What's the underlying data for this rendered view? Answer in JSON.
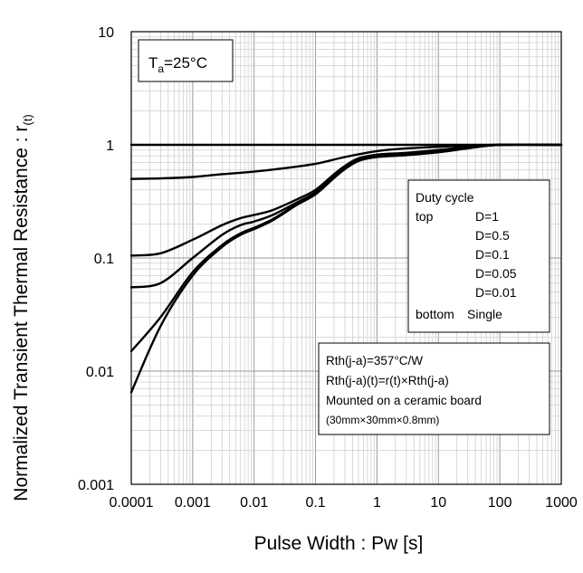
{
  "chart_data": {
    "type": "line",
    "title": "",
    "xlabel": "Pulse Width : Pw [s]",
    "ylabel_main": "Normalized Transient Thermal Resistance : r",
    "ylabel_sub": "(t)",
    "xscale": "log",
    "yscale": "log",
    "xlim": [
      0.0001,
      1000
    ],
    "ylim": [
      0.001,
      10
    ],
    "grid": true,
    "xticks": [
      "0.0001",
      "0.001",
      "0.01",
      "0.1",
      "1",
      "10",
      "100",
      "1000"
    ],
    "yticks": [
      "0.001",
      "0.01",
      "0.1",
      "1",
      "10"
    ],
    "condition_main": "T",
    "condition_sub": "a",
    "condition_value": "=25°C",
    "legend": {
      "title": "Duty cycle",
      "prefix_top": "top",
      "prefix_bottom": "bottom",
      "entries": [
        "D=1",
        "D=0.5",
        "D=0.1",
        "D=0.05",
        "D=0.01",
        "Single"
      ],
      "placement": "right"
    },
    "annotation": [
      "Rth(j-a)=357°C/W",
      "Rth(j-a)(t)=r(t)×Rth(j-a)",
      "Mounted on a ceramic board",
      "(30mm×30mm×0.8mm)"
    ],
    "series": [
      {
        "name": "D=1",
        "x": [
          0.0001,
          1000
        ],
        "y": [
          1,
          1
        ]
      },
      {
        "name": "D=0.5",
        "x": [
          0.0001,
          0.0003,
          0.001,
          0.003,
          0.01,
          0.03,
          0.1,
          0.3,
          1,
          3,
          10,
          30,
          100,
          1000
        ],
        "y": [
          0.5,
          0.505,
          0.52,
          0.55,
          0.58,
          0.62,
          0.68,
          0.78,
          0.88,
          0.93,
          0.96,
          0.985,
          1,
          1
        ]
      },
      {
        "name": "D=0.1",
        "x": [
          0.0001,
          0.0003,
          0.001,
          0.003,
          0.006,
          0.01,
          0.02,
          0.05,
          0.1,
          0.2,
          0.3,
          0.5,
          1,
          3,
          10,
          30,
          100,
          1000
        ],
        "y": [
          0.105,
          0.11,
          0.145,
          0.195,
          0.225,
          0.24,
          0.265,
          0.33,
          0.4,
          0.55,
          0.65,
          0.76,
          0.82,
          0.85,
          0.9,
          0.96,
          1,
          1
        ]
      },
      {
        "name": "D=0.05",
        "x": [
          0.0001,
          0.0003,
          0.001,
          0.003,
          0.006,
          0.01,
          0.02,
          0.05,
          0.1,
          0.2,
          0.3,
          0.5,
          1,
          3,
          10,
          30,
          100,
          1000
        ],
        "y": [
          0.055,
          0.06,
          0.1,
          0.16,
          0.195,
          0.21,
          0.24,
          0.31,
          0.38,
          0.53,
          0.63,
          0.74,
          0.8,
          0.83,
          0.88,
          0.95,
          1,
          1
        ]
      },
      {
        "name": "D=0.01",
        "x": [
          0.0001,
          0.0003,
          0.001,
          0.003,
          0.006,
          0.01,
          0.02,
          0.05,
          0.1,
          0.2,
          0.3,
          0.5,
          1,
          3,
          10,
          30,
          100,
          1000
        ],
        "y": [
          0.015,
          0.03,
          0.075,
          0.13,
          0.165,
          0.185,
          0.22,
          0.3,
          0.37,
          0.52,
          0.62,
          0.73,
          0.79,
          0.82,
          0.87,
          0.94,
          1,
          1
        ]
      },
      {
        "name": "Single",
        "x": [
          0.0001,
          0.0003,
          0.001,
          0.003,
          0.006,
          0.01,
          0.02,
          0.05,
          0.1,
          0.2,
          0.3,
          0.5,
          1,
          3,
          10,
          30,
          100,
          1000
        ],
        "y": [
          0.0065,
          0.025,
          0.07,
          0.125,
          0.16,
          0.18,
          0.215,
          0.295,
          0.365,
          0.51,
          0.61,
          0.72,
          0.78,
          0.81,
          0.86,
          0.93,
          1,
          1
        ]
      }
    ]
  }
}
